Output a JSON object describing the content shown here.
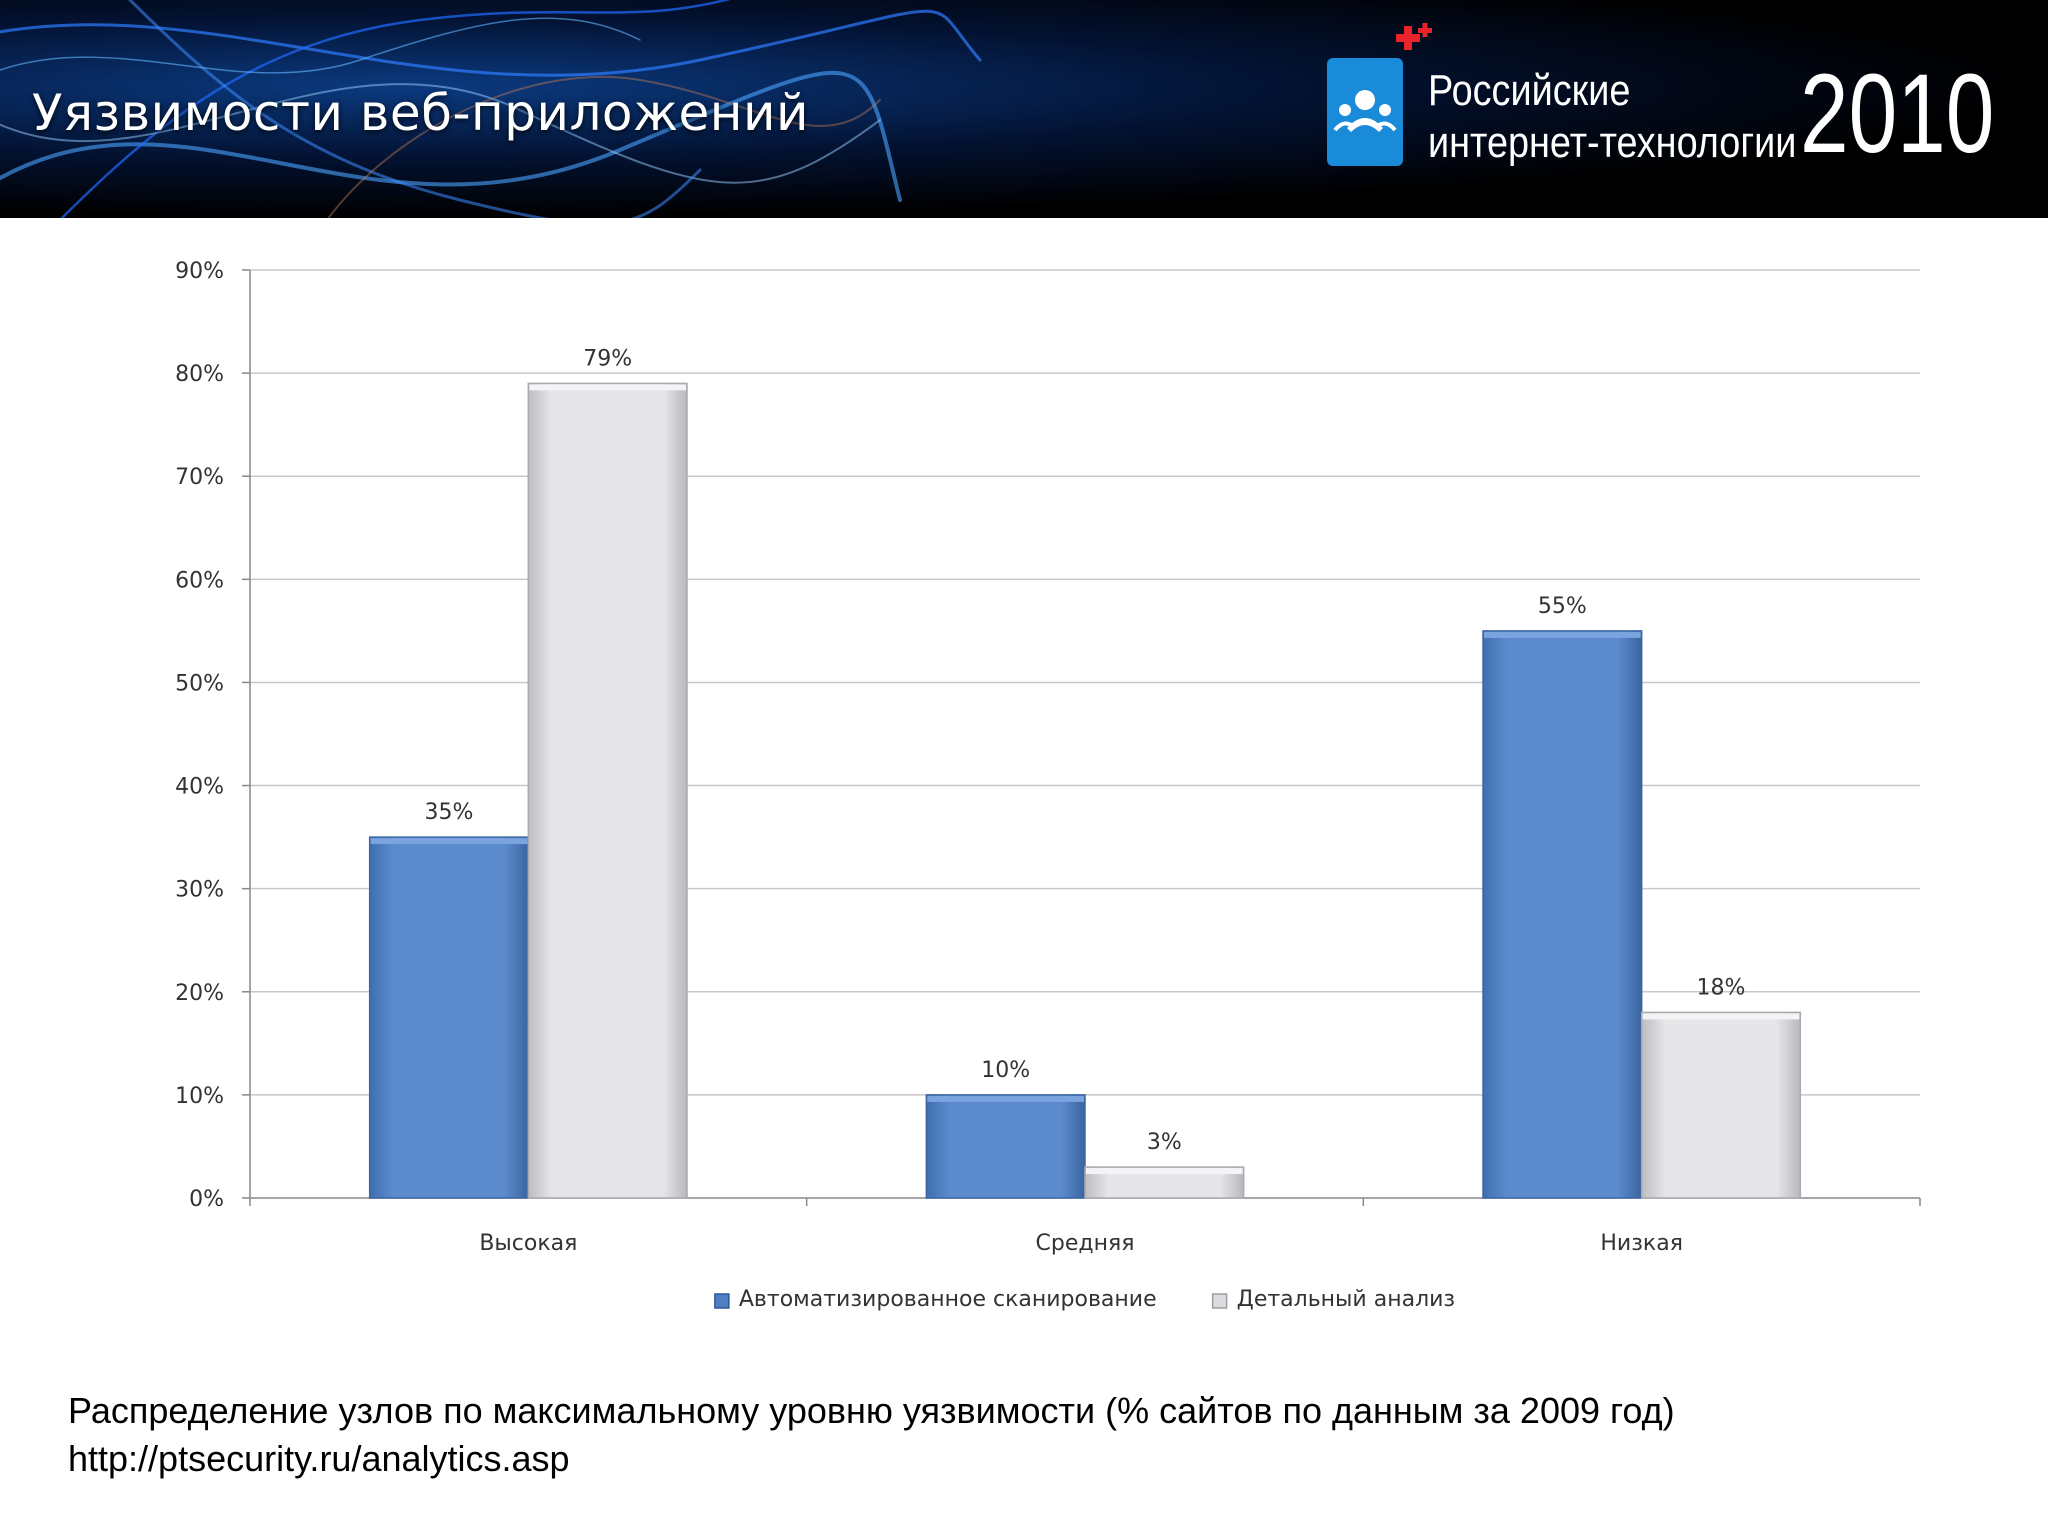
{
  "header": {
    "title": "Уязвимости веб-приложений",
    "brand_line1": "Российские",
    "brand_line2": "интернет-технологии",
    "brand_year": "2010"
  },
  "colors": {
    "series_auto": "#5b8bcd",
    "series_detail": "#e4e4e6",
    "header_bg": "#000000",
    "logo_blue": "#1a8bd8",
    "logo_plus": "#e8232a"
  },
  "chart_data": {
    "type": "bar",
    "categories": [
      "Высокая",
      "Средняя",
      "Низкая"
    ],
    "series": [
      {
        "name": "Автоматизированное сканирование",
        "values": [
          35,
          10,
          55
        ],
        "labels": [
          "35%",
          "10%",
          "55%"
        ]
      },
      {
        "name": "Детальный анализ",
        "values": [
          79,
          3,
          18
        ],
        "labels": [
          "79%",
          "3%",
          "18%"
        ]
      }
    ],
    "yticks": [
      "0%",
      "10%",
      "20%",
      "30%",
      "40%",
      "50%",
      "60%",
      "70%",
      "80%",
      "90%"
    ],
    "ylim": [
      0,
      90
    ],
    "grid": true,
    "legend": "bottom"
  },
  "caption": {
    "text": "Распределение узлов по максимальному уровню уязвимости (% сайтов по данным за 2009 год)",
    "url": "http://ptsecurity.ru/analytics.asp"
  }
}
